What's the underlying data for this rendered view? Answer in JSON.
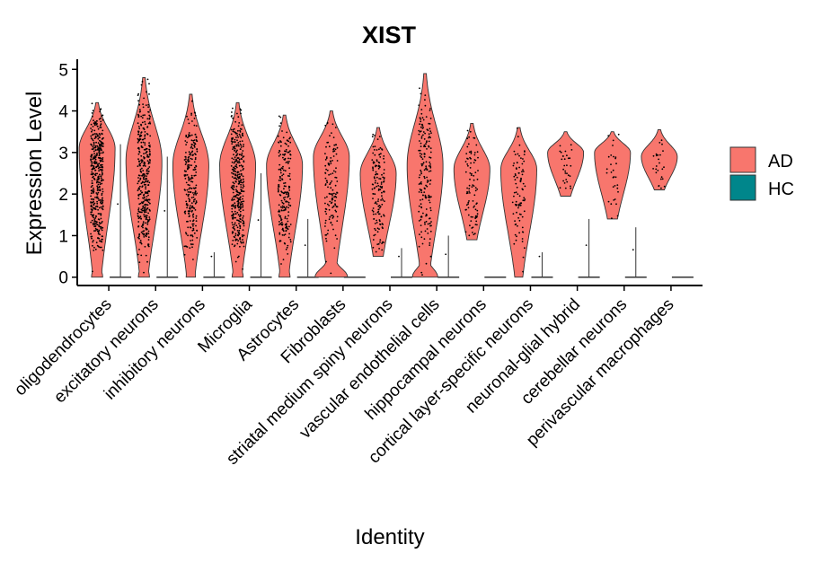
{
  "chart_data": {
    "type": "violin",
    "title": "XIST",
    "xlabel": "Identity",
    "ylabel": "Expression Level",
    "ylim": [
      0,
      5
    ],
    "yticks": [
      0,
      1,
      2,
      3,
      4,
      5
    ],
    "grid": false,
    "legend": {
      "position": "right",
      "entries": [
        "AD",
        "HC"
      ]
    },
    "colors": {
      "AD": "#F8766D",
      "HC": "#00868B",
      "points": "#000000"
    },
    "categories": [
      "oligodendrocytes",
      "excitatory neurons",
      "inhibitory neurons",
      "Microglia",
      "Astrocytes",
      "Fibroblasts",
      "striatal medium spiny neurons",
      "vascular endothelial cells",
      "hippocampal neurons",
      "cortical layer-specific neurons",
      "neuronal-glial hybrid",
      "cerebellar neurons",
      "perivascular macrophages"
    ],
    "series": [
      {
        "name": "AD",
        "distributions": [
          {
            "min": 0,
            "max": 4.2,
            "mode": 3.1,
            "zero_bulge": 0.3
          },
          {
            "min": 0,
            "max": 4.8,
            "mode": 2.8,
            "zero_bulge": 0.3
          },
          {
            "min": 0,
            "max": 4.4,
            "mode": 2.7,
            "zero_bulge": 0.25
          },
          {
            "min": 0,
            "max": 4.2,
            "mode": 2.7,
            "zero_bulge": 0.3
          },
          {
            "min": 0,
            "max": 3.9,
            "mode": 2.7,
            "zero_bulge": 0.3
          },
          {
            "min": 0,
            "max": 4.0,
            "mode": 2.9,
            "zero_bulge": 0.9
          },
          {
            "min": 0.5,
            "max": 3.6,
            "mode": 2.5,
            "zero_bulge": 0
          },
          {
            "min": 0,
            "max": 4.9,
            "mode": 2.7,
            "zero_bulge": 0.7
          },
          {
            "min": 0.9,
            "max": 3.7,
            "mode": 2.6,
            "zero_bulge": 0
          },
          {
            "min": 0,
            "max": 3.6,
            "mode": 2.6,
            "zero_bulge": 0
          },
          {
            "min": 1.95,
            "max": 3.5,
            "mode": 3.0,
            "zero_bulge": 0
          },
          {
            "min": 1.4,
            "max": 3.5,
            "mode": 3.0,
            "zero_bulge": 0
          },
          {
            "min": 2.1,
            "max": 3.55,
            "mode": 2.9,
            "zero_bulge": 0
          }
        ]
      },
      {
        "name": "HC",
        "distributions": [
          {
            "min": 0,
            "max": 3.2
          },
          {
            "min": 0,
            "max": 2.9
          },
          {
            "min": 0,
            "max": 0.6
          },
          {
            "min": 0,
            "max": 2.5
          },
          {
            "min": 0,
            "max": 1.4
          },
          {
            "min": 0,
            "max": 0
          },
          {
            "min": 0,
            "max": 0.7
          },
          {
            "min": 0,
            "max": 1.0
          },
          {
            "min": 0,
            "max": 0
          },
          {
            "min": 0,
            "max": 0.6
          },
          {
            "min": 0,
            "max": 1.4
          },
          {
            "min": 0,
            "max": 1.2
          },
          {
            "min": 0,
            "max": 0
          }
        ]
      }
    ]
  }
}
